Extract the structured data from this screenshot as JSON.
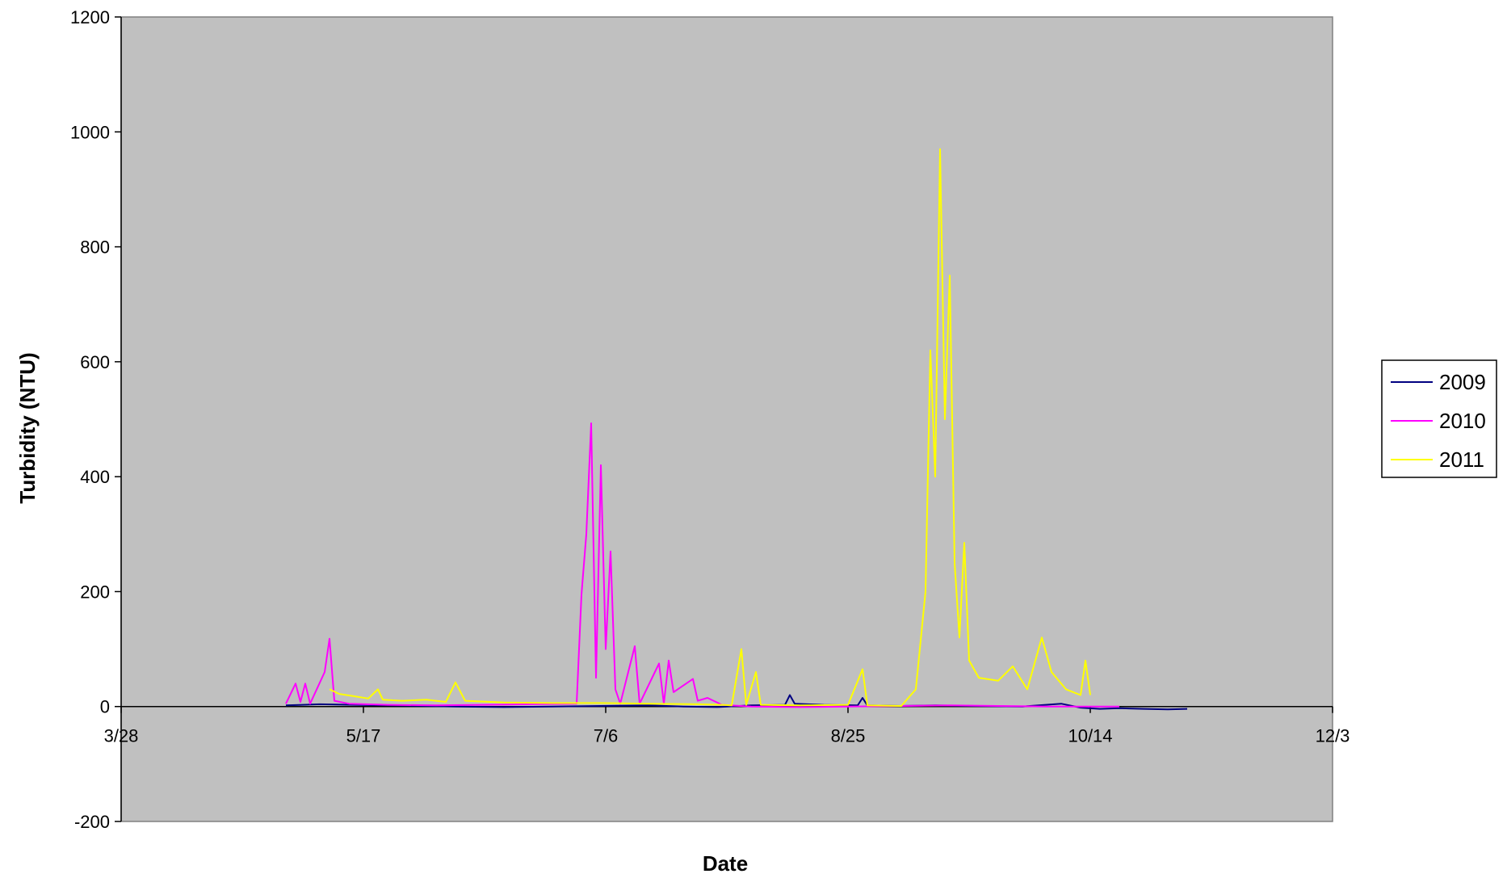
{
  "chart_data": {
    "type": "line",
    "title": "",
    "xlabel": "Date",
    "ylabel": "Turbidity (NTU)",
    "x_axis_type": "date",
    "xlim": [
      "3/28",
      "12/3"
    ],
    "ylim": [
      -200,
      1200
    ],
    "x_tick_labels": [
      "3/28",
      "5/17",
      "7/6",
      "8/25",
      "10/14",
      "12/3"
    ],
    "y_tick_labels": [
      "-200",
      "0",
      "200",
      "400",
      "600",
      "800",
      "1000",
      "1200"
    ],
    "plot_background": "#C0C0C0",
    "grid": false,
    "legend_position": "right",
    "series": [
      {
        "name": "2009",
        "color": "#000080",
        "points": [
          [
            "5/1",
            2
          ],
          [
            "5/8",
            4
          ],
          [
            "5/15",
            3
          ],
          [
            "5/22",
            2
          ],
          [
            "5/29",
            1
          ],
          [
            "6/5",
            0
          ],
          [
            "6/15",
            -1
          ],
          [
            "6/25",
            0
          ],
          [
            "7/5",
            1
          ],
          [
            "7/15",
            2
          ],
          [
            "7/22",
            0
          ],
          [
            "7/29",
            -1
          ],
          [
            "8/5",
            2
          ],
          [
            "8/12",
            3
          ],
          [
            "8/13",
            20
          ],
          [
            "8/14",
            5
          ],
          [
            "8/20",
            3
          ],
          [
            "8/27",
            2
          ],
          [
            "8/28",
            15
          ],
          [
            "8/29",
            2
          ],
          [
            "9/5",
            1
          ],
          [
            "9/12",
            2
          ],
          [
            "9/20",
            1
          ],
          [
            "9/30",
            0
          ],
          [
            "10/8",
            5
          ],
          [
            "10/12",
            -2
          ],
          [
            "10/16",
            -4
          ],
          [
            "10/20",
            -3
          ],
          [
            "10/25",
            -4
          ],
          [
            "10/30",
            -5
          ],
          [
            "11/3",
            -4
          ]
        ]
      },
      {
        "name": "2010",
        "color": "#FF00FF",
        "points": [
          [
            "5/1",
            5
          ],
          [
            "5/3",
            40
          ],
          [
            "5/4",
            8
          ],
          [
            "5/5",
            40
          ],
          [
            "5/6",
            5
          ],
          [
            "5/9",
            60
          ],
          [
            "5/10",
            118
          ],
          [
            "5/11",
            10
          ],
          [
            "5/14",
            5
          ],
          [
            "5/22",
            3
          ],
          [
            "6/1",
            2
          ],
          [
            "6/10",
            3
          ],
          [
            "6/20",
            4
          ],
          [
            "6/30",
            5
          ],
          [
            "7/1",
            195
          ],
          [
            "7/2",
            300
          ],
          [
            "7/3",
            493
          ],
          [
            "7/4",
            50
          ],
          [
            "7/5",
            420
          ],
          [
            "7/6",
            100
          ],
          [
            "7/7",
            270
          ],
          [
            "7/8",
            30
          ],
          [
            "7/9",
            5
          ],
          [
            "7/12",
            105
          ],
          [
            "7/13",
            5
          ],
          [
            "7/17",
            75
          ],
          [
            "7/18",
            5
          ],
          [
            "7/19",
            80
          ],
          [
            "7/20",
            25
          ],
          [
            "7/24",
            48
          ],
          [
            "7/25",
            10
          ],
          [
            "7/27",
            15
          ],
          [
            "7/30",
            3
          ],
          [
            "8/5",
            0
          ],
          [
            "8/15",
            -1
          ],
          [
            "8/25",
            0
          ],
          [
            "9/5",
            1
          ],
          [
            "9/15",
            2
          ],
          [
            "9/25",
            1
          ],
          [
            "10/5",
            0
          ],
          [
            "10/15",
            0
          ],
          [
            "10/20",
            0
          ]
        ]
      },
      {
        "name": "2011",
        "color": "#FFFF00",
        "points": [
          [
            "5/10",
            30
          ],
          [
            "5/12",
            22
          ],
          [
            "5/15",
            18
          ],
          [
            "5/18",
            14
          ],
          [
            "5/20",
            30
          ],
          [
            "5/21",
            12
          ],
          [
            "5/25",
            10
          ],
          [
            "5/30",
            12
          ],
          [
            "6/3",
            8
          ],
          [
            "6/5",
            42
          ],
          [
            "6/7",
            10
          ],
          [
            "6/15",
            7
          ],
          [
            "6/25",
            6
          ],
          [
            "7/5",
            6
          ],
          [
            "7/15",
            5
          ],
          [
            "7/25",
            4
          ],
          [
            "7/30",
            3
          ],
          [
            "8/1",
            2
          ],
          [
            "8/3",
            100
          ],
          [
            "8/4",
            3
          ],
          [
            "8/6",
            60
          ],
          [
            "8/7",
            3
          ],
          [
            "8/15",
            2
          ],
          [
            "8/25",
            3
          ],
          [
            "8/28",
            65
          ],
          [
            "8/29",
            2
          ],
          [
            "9/5",
            1
          ],
          [
            "9/8",
            30
          ],
          [
            "9/10",
            200
          ],
          [
            "9/11",
            620
          ],
          [
            "9/12",
            400
          ],
          [
            "9/13",
            970
          ],
          [
            "9/14",
            500
          ],
          [
            "9/15",
            750
          ],
          [
            "9/16",
            250
          ],
          [
            "9/17",
            120
          ],
          [
            "9/18",
            285
          ],
          [
            "9/19",
            80
          ],
          [
            "9/21",
            50
          ],
          [
            "9/25",
            45
          ],
          [
            "9/28",
            70
          ],
          [
            "10/1",
            30
          ],
          [
            "10/3",
            90
          ],
          [
            "10/4",
            120
          ],
          [
            "10/6",
            60
          ],
          [
            "10/9",
            30
          ],
          [
            "10/12",
            20
          ],
          [
            "10/13",
            80
          ],
          [
            "10/14",
            20
          ]
        ]
      }
    ]
  }
}
